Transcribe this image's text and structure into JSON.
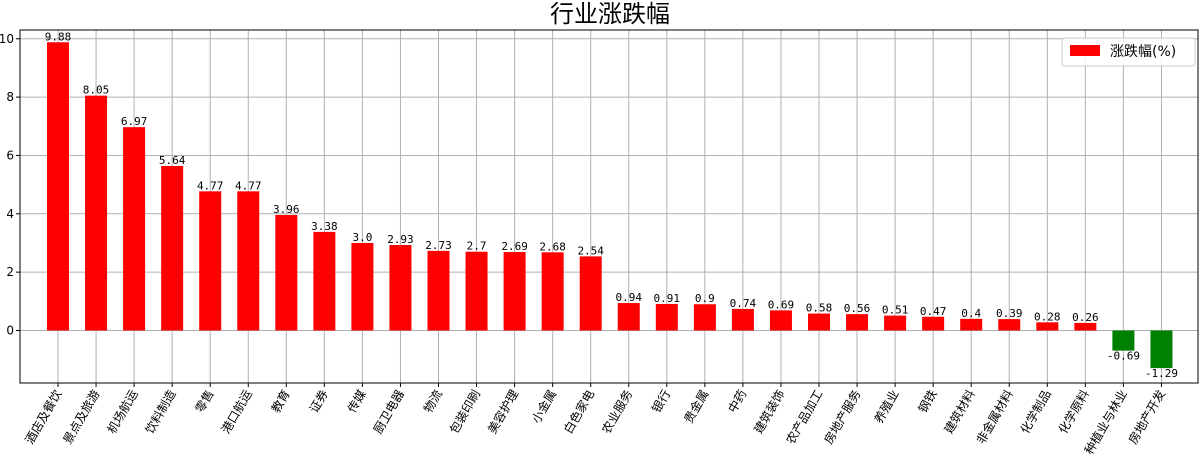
{
  "chart_data": {
    "type": "bar",
    "title": "行业涨跌幅",
    "xlabel": "",
    "ylabel": "",
    "ylim": [
      -1.8,
      10.3
    ],
    "yticks": [
      0,
      2,
      4,
      6,
      8,
      10
    ],
    "grid": true,
    "legend_position": "top-right",
    "categories": [
      "酒店及餐饮",
      "景点及旅游",
      "机场航运",
      "饮料制造",
      "零售",
      "港口航运",
      "教育",
      "证券",
      "传媒",
      "厨卫电器",
      "物流",
      "包装印刷",
      "美容护理",
      "小金属",
      "白色家电",
      "农业服务",
      "银行",
      "贵金属",
      "中药",
      "建筑装饰",
      "农产品加工",
      "房地产服务",
      "养殖业",
      "钢铁",
      "建筑材料",
      "非金属材料",
      "化学制品",
      "化学原料",
      "种植业与林业",
      "房地产开发"
    ],
    "series": [
      {
        "name": "涨跌幅(%)",
        "values": [
          9.88,
          8.05,
          6.97,
          5.64,
          4.77,
          4.77,
          3.96,
          3.38,
          3.0,
          2.93,
          2.73,
          2.7,
          2.69,
          2.68,
          2.54,
          0.94,
          0.91,
          0.9,
          0.74,
          0.69,
          0.58,
          0.56,
          0.51,
          0.47,
          0.4,
          0.39,
          0.28,
          0.26,
          -0.69,
          -1.29
        ],
        "labels": [
          "9.88",
          "8.05",
          "6.97",
          "5.64",
          "4.77",
          "4.77",
          "3.96",
          "3.38",
          "3.0",
          "2.93",
          "2.73",
          "2.7",
          "2.69",
          "2.68",
          "2.54",
          "0.94",
          "0.91",
          "0.9",
          "0.74",
          "0.69",
          "0.58",
          "0.56",
          "0.51",
          "0.47",
          "0.4",
          "0.39",
          "0.28",
          "0.26",
          "-0.69",
          "-1.29"
        ]
      }
    ],
    "colors": {
      "positive": "#ff0000",
      "negative": "#008000",
      "grid": "#b0b0b0",
      "axis": "#000000"
    }
  }
}
